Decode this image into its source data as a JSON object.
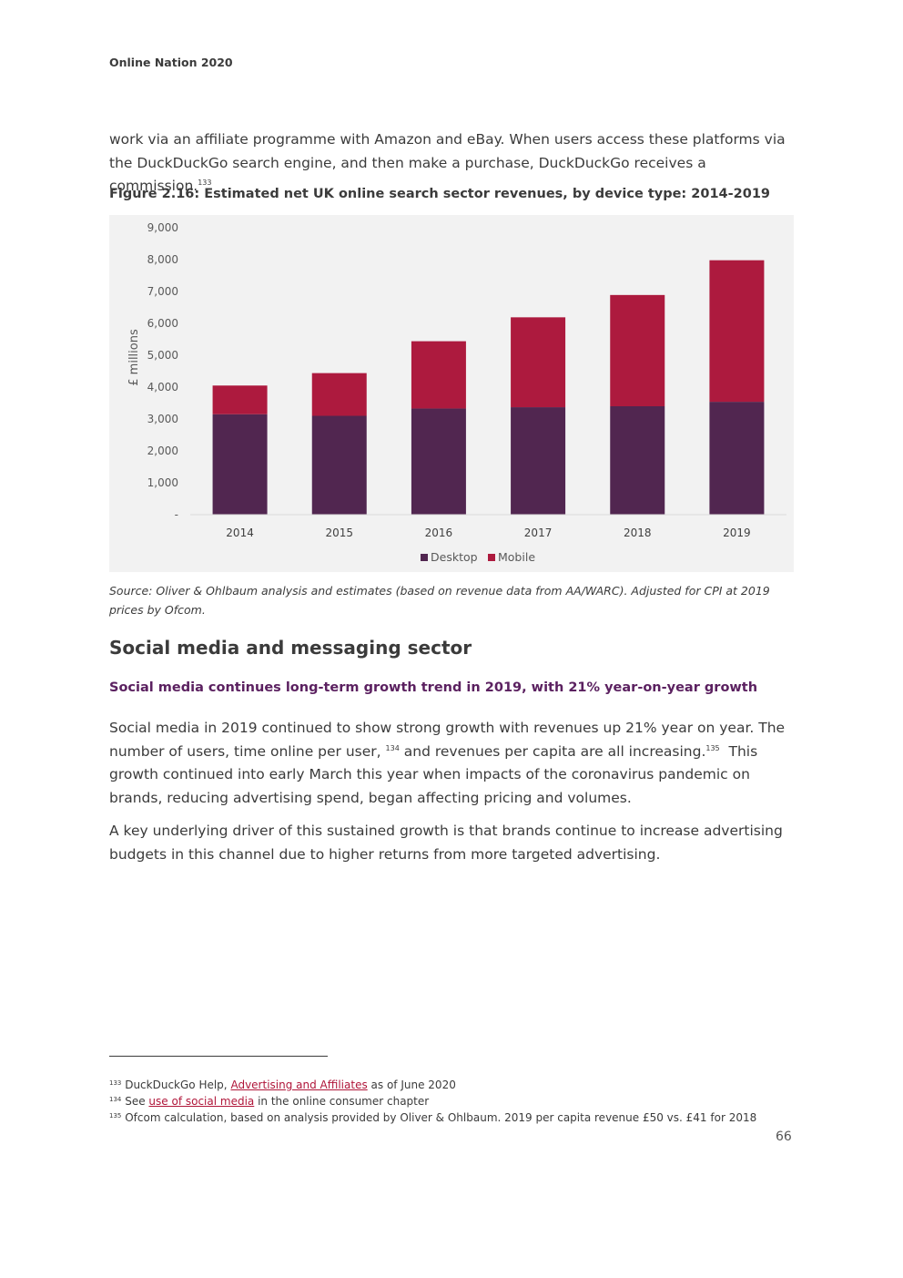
{
  "header": {
    "running_title": "Online Nation 2020"
  },
  "intro_paragraph": {
    "text": "work via an affiliate programme with Amazon and eBay. When users access these platforms via the DuckDuckGo search engine, and then make a purchase, DuckDuckGo receives a commission.",
    "footnote_ref": "133"
  },
  "figure": {
    "title": "Figure 2.16: Estimated net UK online search sector revenues, by device type: 2014-2019",
    "source": "Source: Oliver & Ohlbaum analysis and estimates (based on revenue data from AA/WARC). Adjusted for CPI at 2019 prices by Ofcom."
  },
  "chart_data": {
    "type": "bar",
    "stacked": true,
    "title": "",
    "xlabel": "",
    "ylabel": "£ millions",
    "ylim": [
      0,
      9000
    ],
    "y_ticks": [
      "-",
      "1,000",
      "2,000",
      "3,000",
      "4,000",
      "5,000",
      "6,000",
      "7,000",
      "8,000",
      "9,000"
    ],
    "categories": [
      "2014",
      "2015",
      "2016",
      "2017",
      "2018",
      "2019"
    ],
    "series": [
      {
        "name": "Desktop",
        "color": "#512650",
        "values": [
          3150,
          3100,
          3330,
          3370,
          3400,
          3540
        ]
      },
      {
        "name": "Mobile",
        "color": "#ad1a3e",
        "values": [
          900,
          1340,
          2110,
          2820,
          3490,
          4440
        ]
      }
    ],
    "legend_position": "bottom",
    "grid": false
  },
  "section": {
    "heading": "Social media and messaging sector",
    "subheading": "Social media continues long-term growth trend in 2019, with 21% year-on-year growth",
    "p1_a": "Social media in 2019 continued to show strong growth with revenues up 21% year on year. The number of users, time online per user,",
    "p1_ref1": "134",
    "p1_b": "and revenues per capita are all increasing.",
    "p1_ref2": "135",
    "p1_c": "This growth continued into early March this year when impacts of the coronavirus pandemic on brands, reducing advertising spend, began affecting pricing and volumes.",
    "p2": "A key underlying driver of this sustained growth is that brands continue to increase advertising budgets in this channel due to higher returns from more targeted advertising."
  },
  "footnotes": [
    {
      "num": "133",
      "before": "DuckDuckGo Help,",
      "link": "Advertising and Affiliates",
      "after": "as of June 2020"
    },
    {
      "num": "134",
      "before": "See",
      "link": "use of social media",
      "after": "in the online consumer chapter"
    },
    {
      "num": "135",
      "before": "Ofcom calculation, based on analysis provided by Oliver & Ohlbaum. 2019 per capita revenue £50 vs. £41 for 2018",
      "link": "",
      "after": ""
    }
  ],
  "page_number": "66"
}
